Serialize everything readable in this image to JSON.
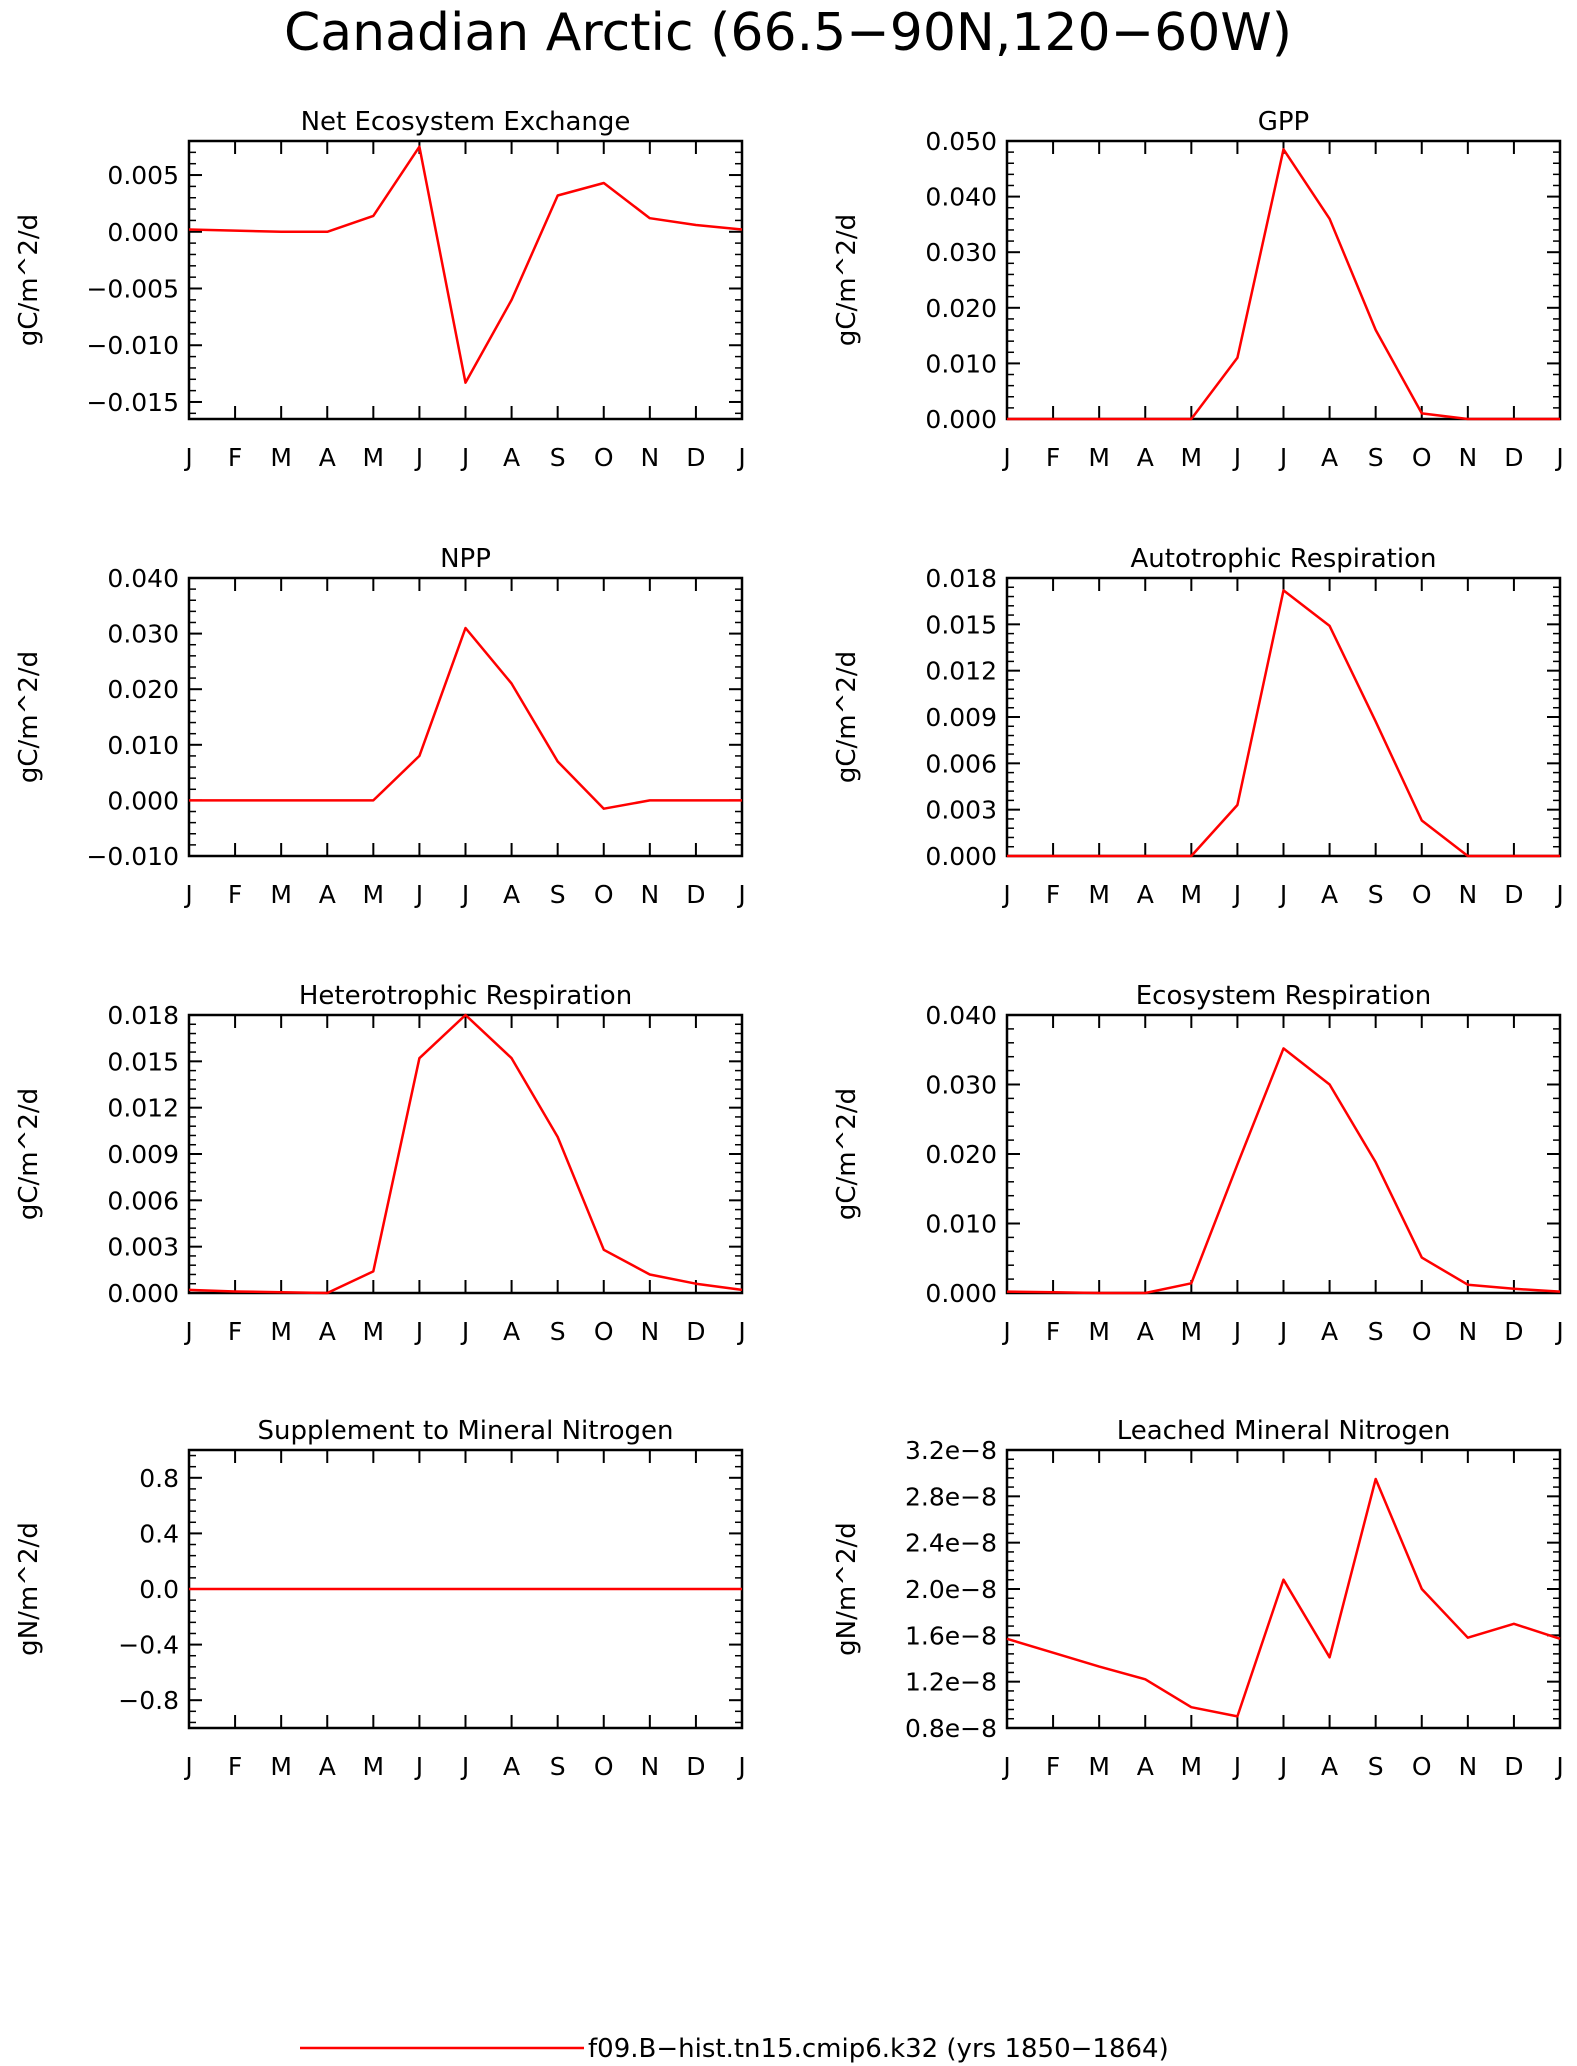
{
  "figure": {
    "title": "Canadian Arctic (66.5−90N,120−60W)",
    "legend": {
      "label": "f09.B−hist.tn15.cmip6.k32 (yrs 1850−1864)",
      "color": "#ff0000"
    }
  },
  "chart_data": [
    {
      "type": "line",
      "title": "Net Ecosystem Exchange",
      "ylabel": "gC/m^2/d",
      "categories": [
        "J",
        "F",
        "M",
        "A",
        "M",
        "J",
        "J",
        "A",
        "S",
        "O",
        "N",
        "D",
        "J"
      ],
      "ylim": [
        -0.0165,
        0.008
      ],
      "yticks": [
        -0.015,
        -0.01,
        -0.005,
        0.0,
        0.005
      ],
      "ytick_labels": [
        "−0.015",
        "−0.010",
        "−0.005",
        "0.000",
        "0.005"
      ],
      "series": [
        {
          "values": [
            0.0002,
            0.0001,
            0.0,
            0.0,
            0.0014,
            0.0075,
            -0.0133,
            -0.006,
            0.0032,
            0.0043,
            0.0012,
            0.0006,
            0.0002
          ]
        }
      ]
    },
    {
      "type": "line",
      "title": "GPP",
      "ylabel": "gC/m^2/d",
      "categories": [
        "J",
        "F",
        "M",
        "A",
        "M",
        "J",
        "J",
        "A",
        "S",
        "O",
        "N",
        "D",
        "J"
      ],
      "ylim": [
        0.0,
        0.05
      ],
      "yticks": [
        0.0,
        0.01,
        0.02,
        0.03,
        0.04,
        0.05
      ],
      "ytick_labels": [
        "0.000",
        "0.010",
        "0.020",
        "0.030",
        "0.040",
        "0.050"
      ],
      "series": [
        {
          "values": [
            0.0,
            0.0,
            0.0,
            0.0,
            0.0,
            0.011,
            0.0485,
            0.036,
            0.016,
            0.001,
            0.0,
            0.0,
            0.0
          ]
        }
      ]
    },
    {
      "type": "line",
      "title": "NPP",
      "ylabel": "gC/m^2/d",
      "categories": [
        "J",
        "F",
        "M",
        "A",
        "M",
        "J",
        "J",
        "A",
        "S",
        "O",
        "N",
        "D",
        "J"
      ],
      "ylim": [
        -0.01,
        0.04
      ],
      "yticks": [
        -0.01,
        0.0,
        0.01,
        0.02,
        0.03,
        0.04
      ],
      "ytick_labels": [
        "−0.010",
        "0.000",
        "0.010",
        "0.020",
        "0.030",
        "0.040"
      ],
      "series": [
        {
          "values": [
            0.0,
            0.0,
            0.0,
            0.0,
            0.0,
            0.008,
            0.031,
            0.021,
            0.007,
            -0.0015,
            0.0,
            0.0,
            0.0
          ]
        }
      ]
    },
    {
      "type": "line",
      "title": "Autotrophic Respiration",
      "ylabel": "gC/m^2/d",
      "categories": [
        "J",
        "F",
        "M",
        "A",
        "M",
        "J",
        "J",
        "A",
        "S",
        "O",
        "N",
        "D",
        "J"
      ],
      "ylim": [
        0.0,
        0.018
      ],
      "yticks": [
        0.0,
        0.003,
        0.006,
        0.009,
        0.012,
        0.015,
        0.018
      ],
      "ytick_labels": [
        "0.000",
        "0.003",
        "0.006",
        "0.009",
        "0.012",
        "0.015",
        "0.018"
      ],
      "series": [
        {
          "values": [
            0.0,
            0.0,
            0.0,
            0.0,
            0.0,
            0.0033,
            0.0172,
            0.0149,
            0.0087,
            0.0023,
            0.0,
            0.0,
            0.0
          ]
        }
      ]
    },
    {
      "type": "line",
      "title": "Heterotrophic Respiration",
      "ylabel": "gC/m^2/d",
      "categories": [
        "J",
        "F",
        "M",
        "A",
        "M",
        "J",
        "J",
        "A",
        "S",
        "O",
        "N",
        "D",
        "J"
      ],
      "ylim": [
        0.0,
        0.018
      ],
      "yticks": [
        0.0,
        0.003,
        0.006,
        0.009,
        0.012,
        0.015,
        0.018
      ],
      "ytick_labels": [
        "0.000",
        "0.003",
        "0.006",
        "0.009",
        "0.012",
        "0.015",
        "0.018"
      ],
      "series": [
        {
          "values": [
            0.0002,
            0.0001,
            5e-05,
            0.0,
            0.0014,
            0.0152,
            0.018,
            0.0152,
            0.0101,
            0.0028,
            0.0012,
            0.0006,
            0.0002
          ]
        }
      ]
    },
    {
      "type": "line",
      "title": "Ecosystem Respiration",
      "ylabel": "gC/m^2/d",
      "categories": [
        "J",
        "F",
        "M",
        "A",
        "M",
        "J",
        "J",
        "A",
        "S",
        "O",
        "N",
        "D",
        "J"
      ],
      "ylim": [
        0.0,
        0.04
      ],
      "yticks": [
        0.0,
        0.01,
        0.02,
        0.03,
        0.04
      ],
      "ytick_labels": [
        "0.000",
        "0.010",
        "0.020",
        "0.030",
        "0.040"
      ],
      "series": [
        {
          "values": [
            0.0002,
            0.0001,
            0.0,
            0.0,
            0.0014,
            0.0185,
            0.0352,
            0.03,
            0.0188,
            0.0051,
            0.0012,
            0.0006,
            0.0002
          ]
        }
      ]
    },
    {
      "type": "line",
      "title": "Supplement to Mineral Nitrogen",
      "ylabel": "gN/m^2/d",
      "categories": [
        "J",
        "F",
        "M",
        "A",
        "M",
        "J",
        "J",
        "A",
        "S",
        "O",
        "N",
        "D",
        "J"
      ],
      "ylim": [
        -1.0,
        1.0
      ],
      "yticks": [
        -0.8,
        -0.4,
        0.0,
        0.4,
        0.8
      ],
      "ytick_labels": [
        "−0.8",
        "−0.4",
        "0.0",
        "0.4",
        "0.8"
      ],
      "series": [
        {
          "values": [
            0,
            0,
            0,
            0,
            0,
            0,
            0,
            0,
            0,
            0,
            0,
            0,
            0
          ]
        }
      ]
    },
    {
      "type": "line",
      "title": "Leached Mineral Nitrogen",
      "ylabel": "gN/m^2/d",
      "categories": [
        "J",
        "F",
        "M",
        "A",
        "M",
        "J",
        "J",
        "A",
        "S",
        "O",
        "N",
        "D",
        "J"
      ],
      "ylim": [
        8e-09,
        3.2e-08
      ],
      "yticks": [
        8e-09,
        1.2e-08,
        1.6e-08,
        2e-08,
        2.4e-08,
        2.8e-08,
        3.2e-08
      ],
      "ytick_labels": [
        "0.8e−8",
        "1.2e−8",
        "1.6e−8",
        "2.0e−8",
        "2.4e−8",
        "2.8e−8",
        "3.2e−8"
      ],
      "series": [
        {
          "values": [
            1.57e-08,
            1.45e-08,
            1.33e-08,
            1.22e-08,
            9.8e-09,
            9e-09,
            2.08e-08,
            1.41e-08,
            2.95e-08,
            2e-08,
            1.58e-08,
            1.7e-08,
            1.57e-08
          ]
        }
      ]
    }
  ]
}
